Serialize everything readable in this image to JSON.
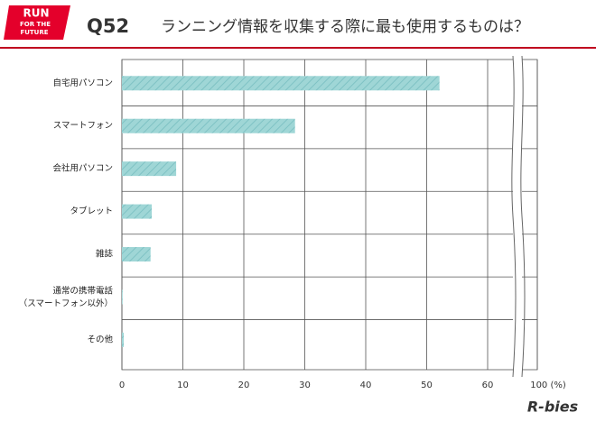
{
  "logo": {
    "lines": [
      "RUN",
      "FOR THE",
      "FUTURE"
    ]
  },
  "brand": "R-bies",
  "chart_data": {
    "type": "bar",
    "orientation": "horizontal",
    "title": "Q52",
    "subtitle": "ランニング情報を収集する際に最も使用するものは？",
    "categories": [
      "自宅用パソコン",
      "スマートフォン",
      "会社用パソコン",
      "タブレット",
      "雑誌",
      "通常の携帯電話\n（スマートフォン以外）",
      "その他"
    ],
    "values": [
      52.1,
      28.4,
      8.9,
      4.9,
      4.7,
      0.1,
      0.3
    ],
    "color": "#9fd6d6",
    "xlim": [
      0,
      100
    ],
    "xticks": [
      0,
      10,
      20,
      30,
      40,
      50,
      60,
      {
        "value": 100,
        "label": "100 (%)"
      }
    ],
    "grid": true
  }
}
